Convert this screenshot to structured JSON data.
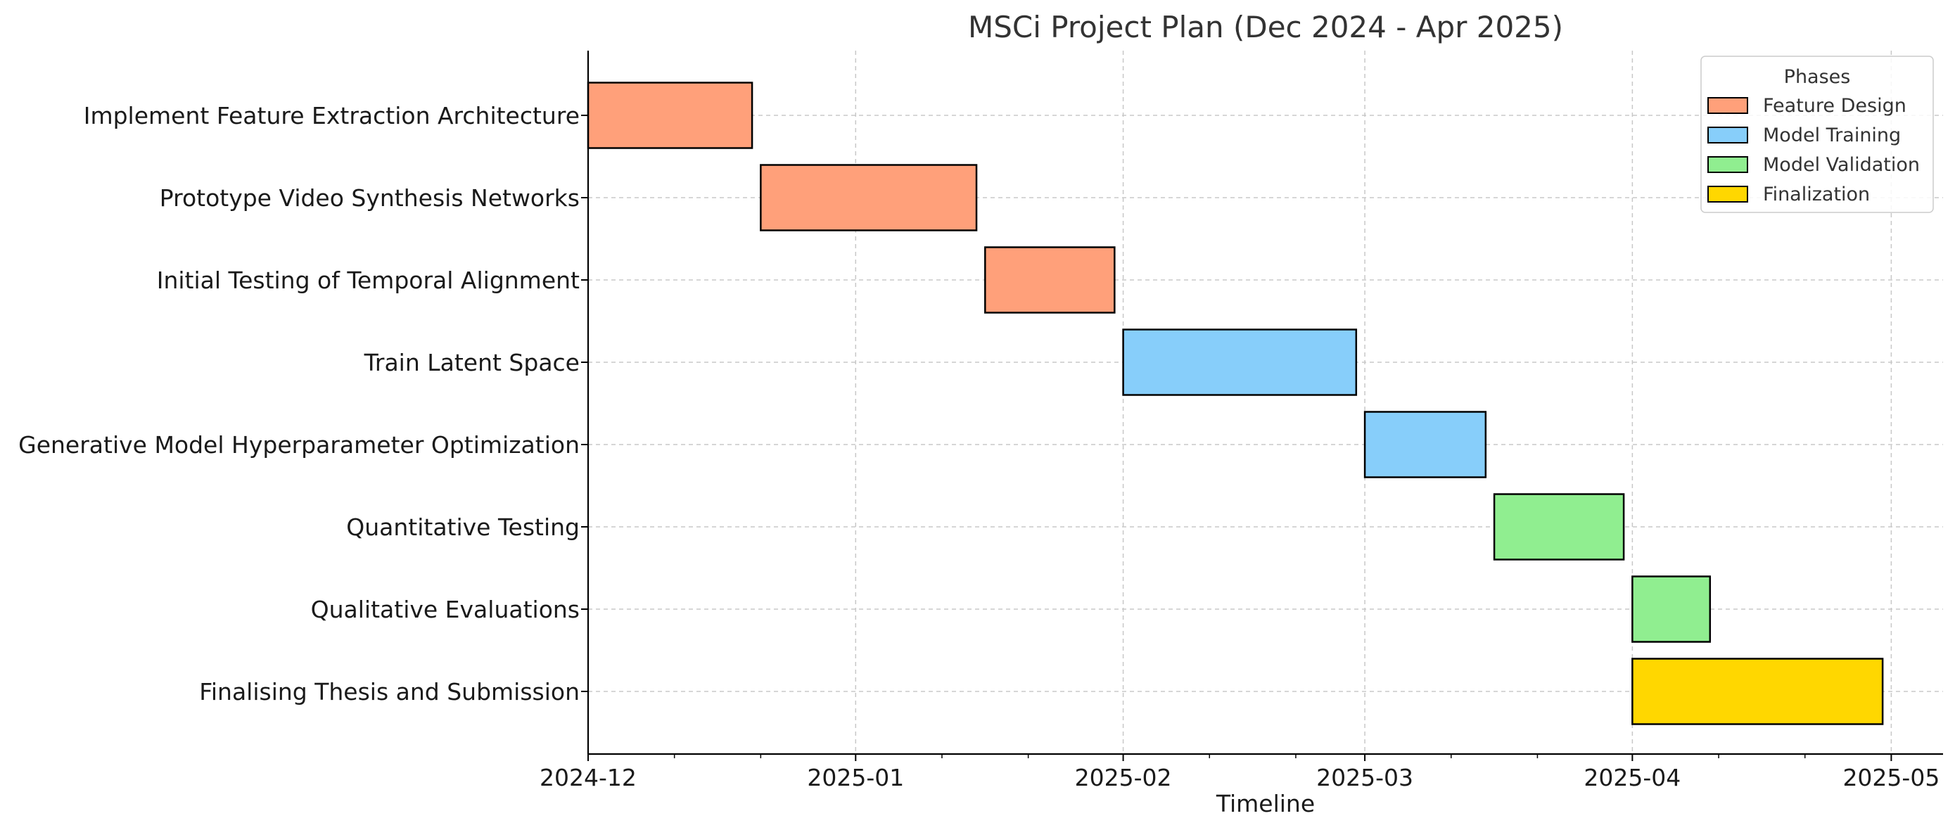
{
  "chart_data": {
    "type": "gantt",
    "title": "MSCi Project Plan (Dec 2024 - Apr 2025)",
    "xlabel": "Timeline",
    "ylabel": "",
    "xlim": [
      "2024-12-01",
      "2025-05-07"
    ],
    "x_ticks": [
      "2024-12",
      "2025-01",
      "2025-02",
      "2025-03",
      "2025-04",
      "2025-05"
    ],
    "grid": true,
    "legend": {
      "title": "Phases",
      "placement": "top-right",
      "entries": [
        {
          "name": "Feature Design",
          "color": "#FFA07A"
        },
        {
          "name": "Model Training",
          "color": "#87CEFA"
        },
        {
          "name": "Model Validation",
          "color": "#90EE90"
        },
        {
          "name": "Finalization",
          "color": "#FFD700"
        }
      ]
    },
    "tasks": [
      {
        "name": "Implement Feature Extraction Architecture",
        "start": "2024-12-01",
        "end": "2024-12-20",
        "phase": "Feature Design"
      },
      {
        "name": "Prototype Video Synthesis Networks",
        "start": "2024-12-21",
        "end": "2025-01-15",
        "phase": "Feature Design"
      },
      {
        "name": "Initial Testing of Temporal Alignment",
        "start": "2025-01-16",
        "end": "2025-01-31",
        "phase": "Feature Design"
      },
      {
        "name": "Train Latent Space",
        "start": "2025-02-01",
        "end": "2025-02-28",
        "phase": "Model Training"
      },
      {
        "name": "Generative Model Hyperparameter Optimization",
        "start": "2025-03-01",
        "end": "2025-03-15",
        "phase": "Model Training"
      },
      {
        "name": "Quantitative Testing",
        "start": "2025-03-16",
        "end": "2025-03-31",
        "phase": "Model Validation"
      },
      {
        "name": "Qualitative Evaluations",
        "start": "2025-04-01",
        "end": "2025-04-10",
        "phase": "Model Validation"
      },
      {
        "name": "Finalising Thesis and Submission",
        "start": "2025-04-01",
        "end": "2025-04-30",
        "phase": "Finalization"
      }
    ]
  }
}
